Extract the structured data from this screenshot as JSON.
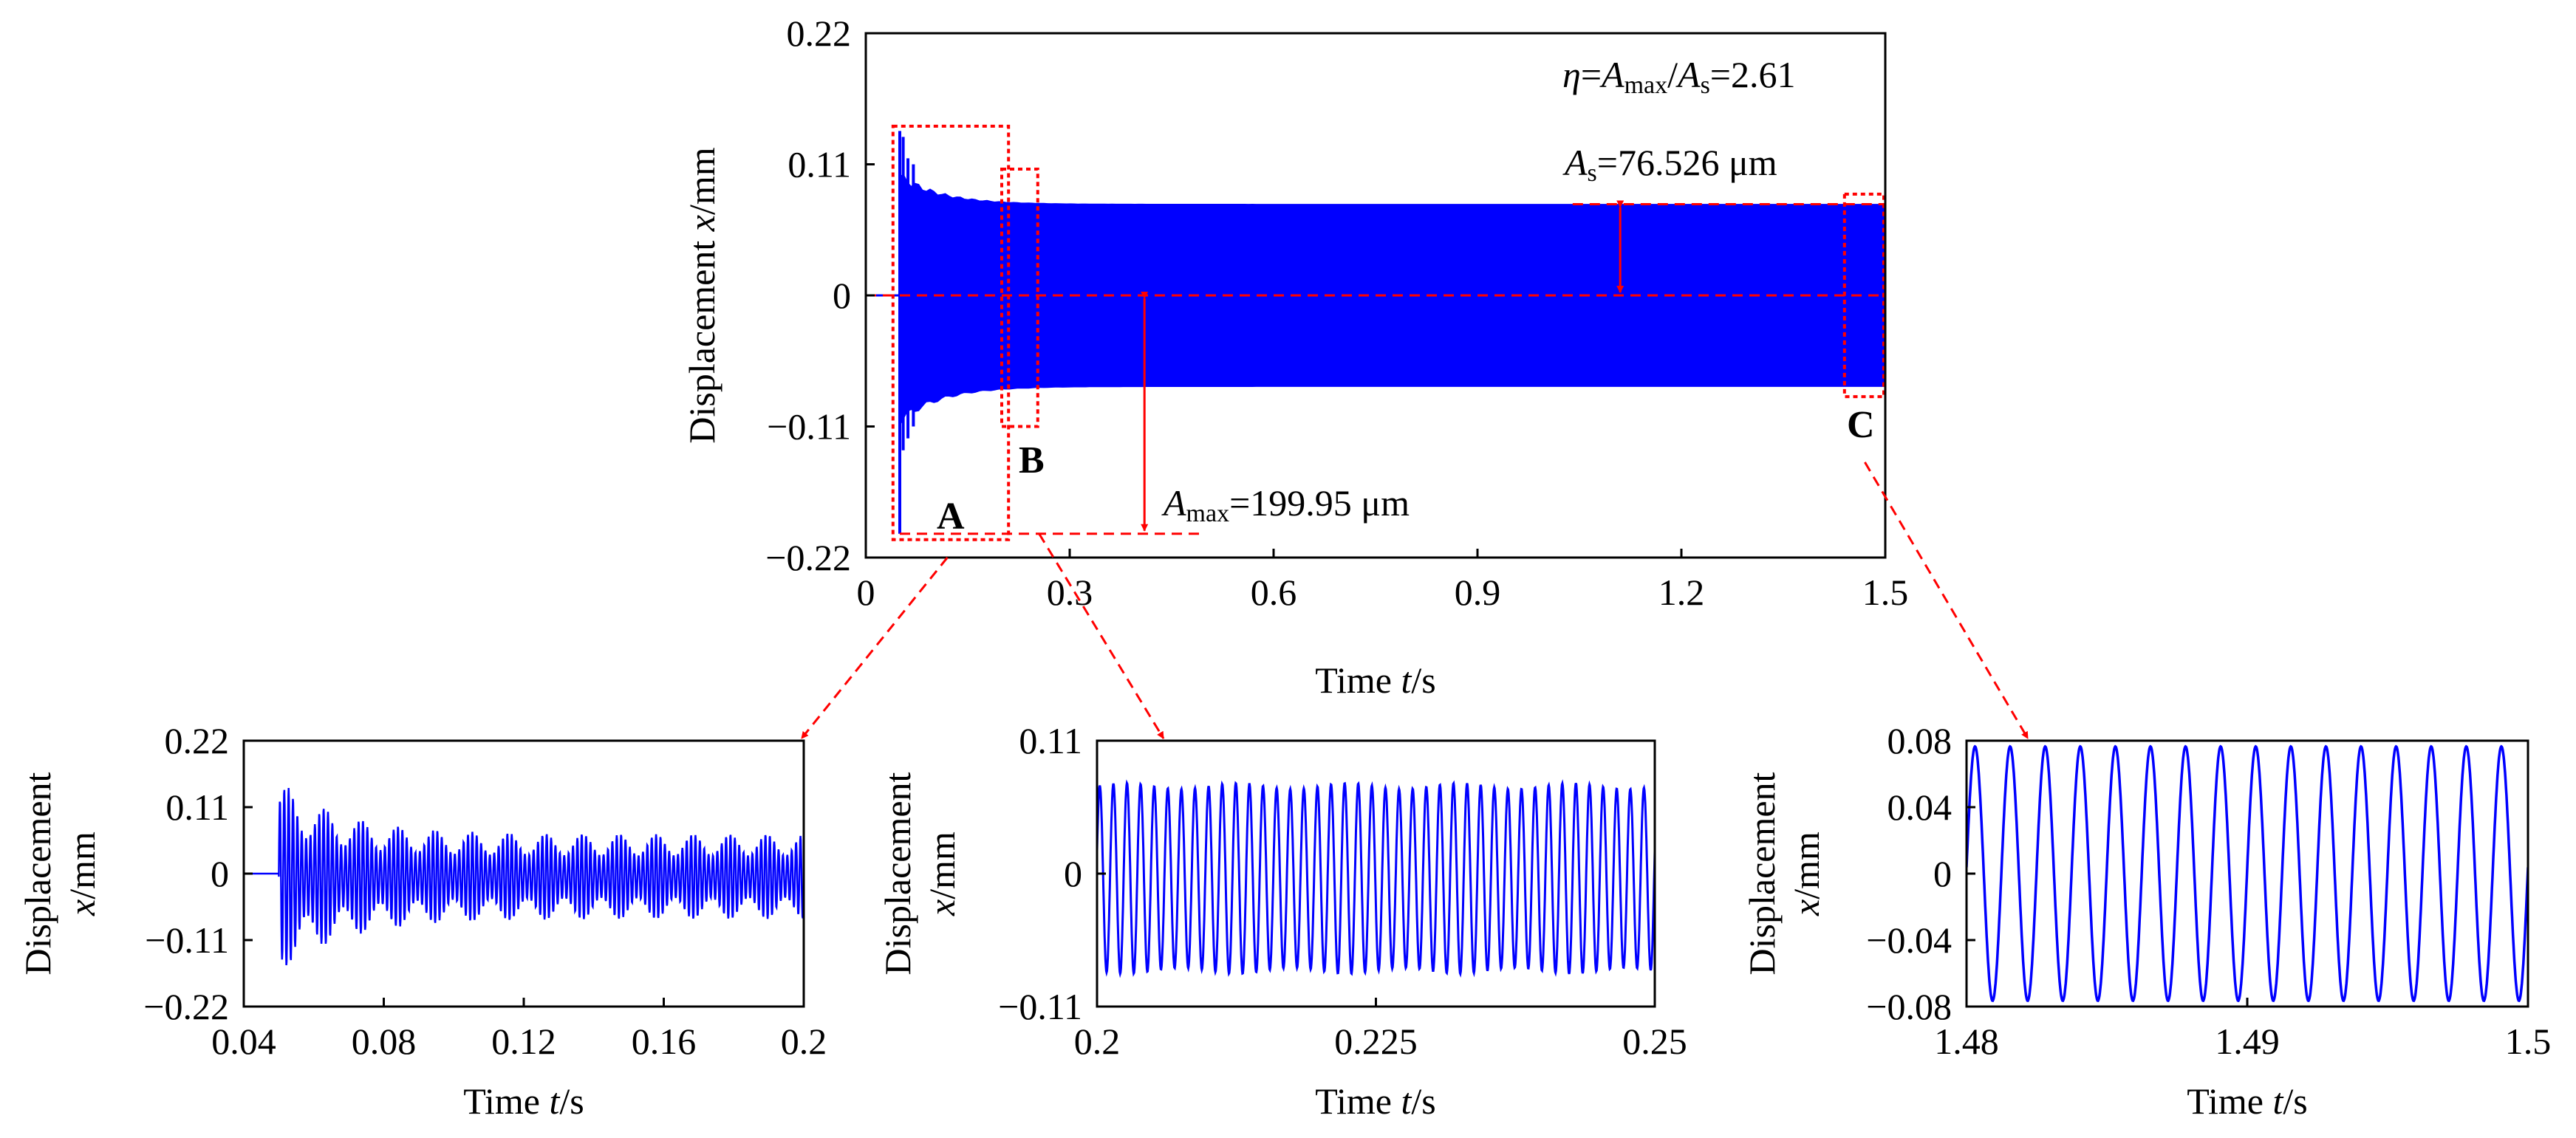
{
  "chart_data": [
    {
      "type": "line",
      "panel": "main",
      "xlabel": {
        "name": "Time",
        "var": "t",
        "unit": "/s"
      },
      "ylabel": {
        "name": "Displacement",
        "var": "x",
        "unit": "/mm"
      },
      "xlim": [
        0,
        1.5
      ],
      "ylim": [
        -0.22,
        0.22
      ],
      "xticks": [
        "0",
        "0.3",
        "0.6",
        "0.9",
        "1.2",
        "1.5"
      ],
      "yticks": [
        "0.22",
        "0.11",
        "0",
        "−0.11",
        "−0.22"
      ],
      "xtick_values": [
        0,
        0.3,
        0.6,
        0.9,
        1.2,
        1.5
      ],
      "ytick_values": [
        0.22,
        0.11,
        0,
        -0.11,
        -0.22
      ],
      "grid": false,
      "series_color": "#0000ff",
      "annotation_color": "#ff0000",
      "signal": {
        "onset_time": 0.05,
        "transient_peak_pos": 0.138,
        "transient_peak_neg": -0.2,
        "steady_amplitude": 0.0765,
        "settle_time": 0.35
      },
      "annotations": {
        "ratio": {
          "eta": "η",
          "A": "A",
          "max_sub": "max",
          "s_sub": "s",
          "value": "=2.61"
        },
        "As": {
          "A": "A",
          "sub": "s",
          "text": "=76.526 μm"
        },
        "Amax": {
          "A": "A",
          "sub": "max",
          "text": "=199.95 μm"
        }
      },
      "regions": [
        {
          "label": "A",
          "t_start": 0.04,
          "t_end": 0.2,
          "y_min": -0.2,
          "y_max": 0.15
        },
        {
          "label": "B",
          "t_start": 0.2,
          "t_end": 0.25,
          "y_min": -0.11,
          "y_max": 0.11
        },
        {
          "label": "C",
          "t_start": 1.48,
          "t_end": 1.5,
          "y_min": -0.085,
          "y_max": 0.085
        }
      ]
    },
    {
      "type": "line",
      "panel": "zoom-A",
      "xlabel": {
        "name": "Time",
        "var": "t",
        "unit": "/s"
      },
      "ylabel": {
        "name": "Displacement",
        "var": "x",
        "unit": "/mm"
      },
      "xlim": [
        0.04,
        0.2
      ],
      "ylim": [
        -0.22,
        0.22
      ],
      "xticks": [
        "0.04",
        "0.08",
        "0.12",
        "0.16",
        "0.2"
      ],
      "yticks": [
        "0.22",
        "0.11",
        "0",
        "−0.11",
        "−0.22"
      ],
      "xtick_values": [
        0.04,
        0.08,
        0.12,
        0.16,
        0.2
      ],
      "ytick_values": [
        0.22,
        0.11,
        0,
        -0.11,
        -0.22
      ],
      "series_color": "#0000ff"
    },
    {
      "type": "line",
      "panel": "zoom-B",
      "xlabel": {
        "name": "Time",
        "var": "t",
        "unit": "/s"
      },
      "ylabel": {
        "name": "Displacement",
        "var": "x",
        "unit": "/mm"
      },
      "xlim": [
        0.2,
        0.25
      ],
      "ylim": [
        -0.11,
        0.11
      ],
      "xticks": [
        "0.2",
        "0.225",
        "0.25"
      ],
      "yticks": [
        "0.11",
        "0",
        "−0.11"
      ],
      "xtick_values": [
        0.2,
        0.225,
        0.25
      ],
      "ytick_values": [
        0.11,
        0,
        -0.11
      ],
      "series_color": "#0000ff",
      "signal": {
        "cycles": 41,
        "amplitude_hi": 0.079,
        "amplitude_lo": 0.074
      }
    },
    {
      "type": "line",
      "panel": "zoom-C",
      "xlabel": {
        "name": "Time",
        "var": "t",
        "unit": "/s"
      },
      "ylabel": {
        "name": "Displacement",
        "var": "x",
        "unit": "/mm"
      },
      "xlim": [
        1.48,
        1.5
      ],
      "ylim": [
        -0.08,
        0.08
      ],
      "xticks": [
        "1.48",
        "1.49",
        "1.5"
      ],
      "yticks": [
        "0.08",
        "0.04",
        "0",
        "−0.04",
        "−0.08"
      ],
      "xtick_values": [
        1.48,
        1.49,
        1.5
      ],
      "ytick_values": [
        0.08,
        0.04,
        0,
        -0.04,
        -0.08
      ],
      "series_color": "#0000ff",
      "signal": {
        "cycles": 16,
        "amplitude": 0.0765
      }
    }
  ]
}
